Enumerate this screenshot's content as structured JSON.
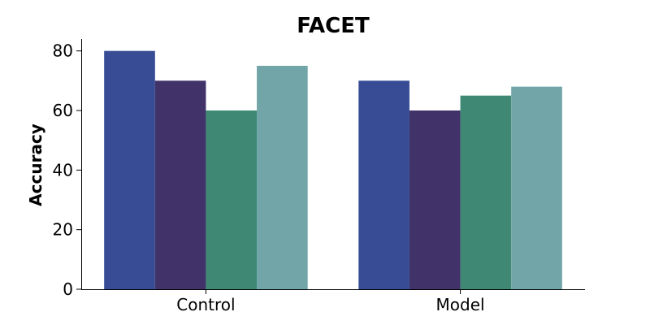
{
  "chart_data": {
    "type": "bar",
    "title": "FACET",
    "xlabel": "",
    "ylabel": "Accuracy",
    "categories": [
      "Control",
      "Model"
    ],
    "series": [
      {
        "values": [
          80,
          70
        ],
        "color": "#374C95"
      },
      {
        "values": [
          70,
          60
        ],
        "color": "#41336A"
      },
      {
        "values": [
          60,
          65
        ],
        "color": "#3E8874"
      },
      {
        "values": [
          75,
          68
        ],
        "color": "#71A5A8"
      }
    ],
    "ylim": [
      0,
      84
    ],
    "yticks": [
      0,
      20,
      40,
      60,
      80
    ],
    "grid": false,
    "legend": "none"
  }
}
